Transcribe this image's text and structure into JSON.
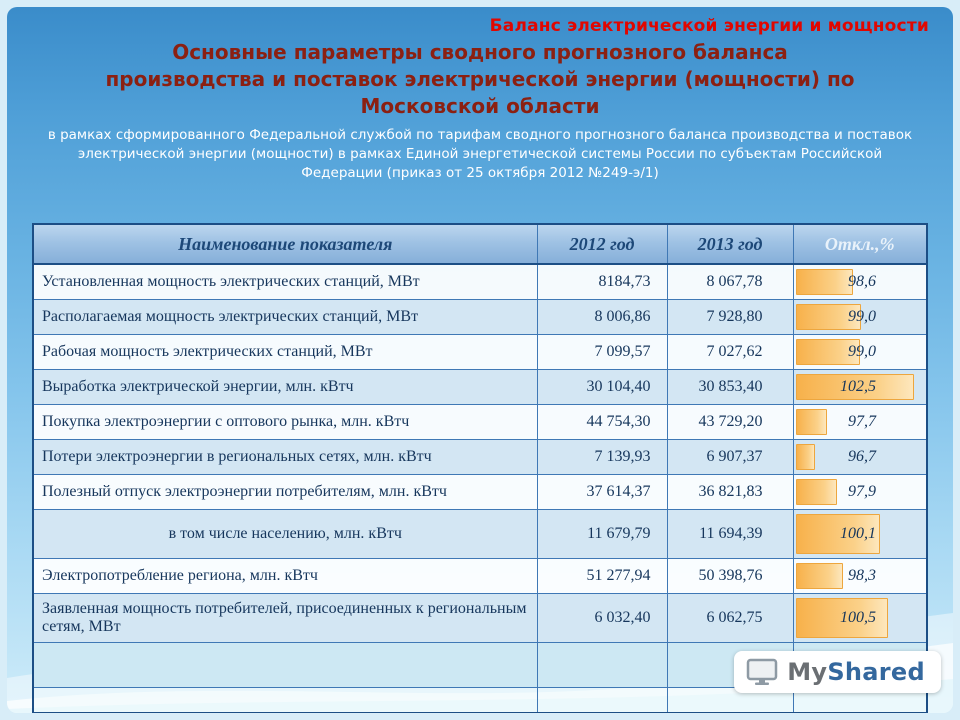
{
  "slide": {
    "kicker": "Баланс электрической энергии и мощности",
    "title_lines": [
      "Основные параметры сводного прогнозного баланса",
      "производства и поставок электрической энергии (мощности) по",
      "Московской области"
    ],
    "subtitle_lines": [
      "в рамках сформированного Федеральной службой по тарифам сводного прогнозного баланса производства и поставок",
      "электрической энергии (мощности) в рамках Единой энергетической системы России по субъектам Российской",
      "Федерации (приказ от 25 октября 2012 №249-э/1)"
    ]
  },
  "table": {
    "columns": [
      "Наименование показателя",
      "2012 год",
      "2013 год",
      "Откл.,%"
    ],
    "rows": [
      {
        "name": "Установленная мощность электрических станций, МВт",
        "y2012": "8184,73",
        "y2013": "8 067,78",
        "dev": "98,6",
        "bar": 42
      },
      {
        "name": "Располагаемая мощность электрических станций, МВт",
        "y2012": "8 006,86",
        "y2013": "7 928,80",
        "dev": "99,0",
        "bar": 48
      },
      {
        "name": "Рабочая мощность электрических станций, МВт",
        "y2012": "7 099,57",
        "y2013": "7 027,62",
        "dev": "99,0",
        "bar": 47
      },
      {
        "name": "Выработка электрической энергии, млн. кВтч",
        "y2012": "30 104,40",
        "y2013": "30 853,40",
        "dev": "102,5",
        "bar": 88
      },
      {
        "name": "Покупка электроэнергии с оптового рынка, млн. кВтч",
        "y2012": "44 754,30",
        "y2013": "43 729,20",
        "dev": "97,7",
        "bar": 22
      },
      {
        "name": "Потери электроэнергии в региональных сетях, млн. кВтч",
        "y2012": "7 139,93",
        "y2013": "6 907,37",
        "dev": "96,7",
        "bar": 13
      },
      {
        "name": "Полезный отпуск электроэнергии потребителям, млн. кВтч",
        "y2012": "37 614,37",
        "y2013": "36 821,83",
        "dev": "97,9",
        "bar": 30
      },
      {
        "name": "в том числе населению, млн. кВтч",
        "y2012": "11 679,79",
        "y2013": "11 694,39",
        "dev": "100,1",
        "bar": 62
      },
      {
        "name": "Электропотребление региона, млн. кВтч",
        "y2012": "51 277,94",
        "y2013": "50 398,76",
        "dev": "98,3",
        "bar": 34
      },
      {
        "name": "Заявленная мощность потребителей, присоединенных к региональным сетям, МВт",
        "y2012": "6 032,40",
        "y2013": "6 062,75",
        "dev": "100,5",
        "bar": 68
      }
    ]
  },
  "watermark": {
    "my": "My",
    "shared": "Shared"
  },
  "colors": {
    "kicker_red": "#e10600",
    "title_maroon": "#8b2012",
    "bar_orange": "#f7b14b",
    "table_navy": "#16365c",
    "header_blue": "#9fc2e4"
  }
}
